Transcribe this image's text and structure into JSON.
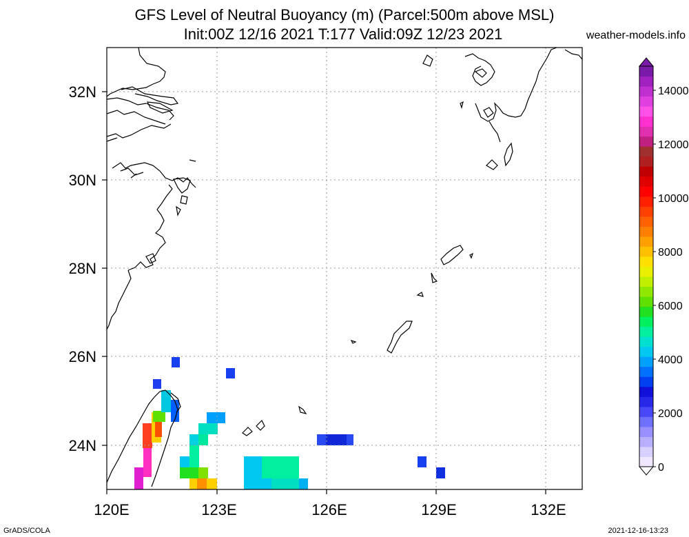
{
  "header": {
    "title_line1": "GFS Level of Neutral Buoyancy (m) (Parcel:500m above MSL)",
    "title_line2": "Init:00Z 12/16 2021 T:177 Valid:09Z 12/23 2021",
    "site": "weather-models.info"
  },
  "footer": {
    "left": "GrADS/COLA",
    "right": "2021-12-16-13:23"
  },
  "map": {
    "lat_labels": [
      "32N",
      "30N",
      "28N",
      "26N",
      "24N"
    ],
    "lon_labels": [
      "120E",
      "123E",
      "126E",
      "129E",
      "132E"
    ],
    "gridlines": "dotted",
    "coastline_color": "#000000"
  },
  "colorbar": {
    "labels": [
      "14000",
      "12000",
      "10000",
      "8000",
      "6000",
      "4000",
      "2000",
      "0"
    ],
    "colors": [
      "#f0e8ff",
      "#d8d0ff",
      "#b8b0ff",
      "#9890ff",
      "#7070ff",
      "#4848f8",
      "#2828e8",
      "#1010d8",
      "#0040f0",
      "#0070ff",
      "#00a0ff",
      "#00c8f0",
      "#00e0d0",
      "#00f0a0",
      "#00f060",
      "#20e020",
      "#60e000",
      "#90e800",
      "#c0f000",
      "#e8f000",
      "#ffe000",
      "#ffc000",
      "#ffa000",
      "#ff8000",
      "#ff6000",
      "#ff4000",
      "#ff2000",
      "#ff0000",
      "#e00000",
      "#c00000",
      "#b02020",
      "#a03030",
      "#c02080",
      "#e030b0",
      "#ff30d0",
      "#ff50e8",
      "#e040e0",
      "#c030d0",
      "#a020c0",
      "#7a1aa8"
    ]
  }
}
